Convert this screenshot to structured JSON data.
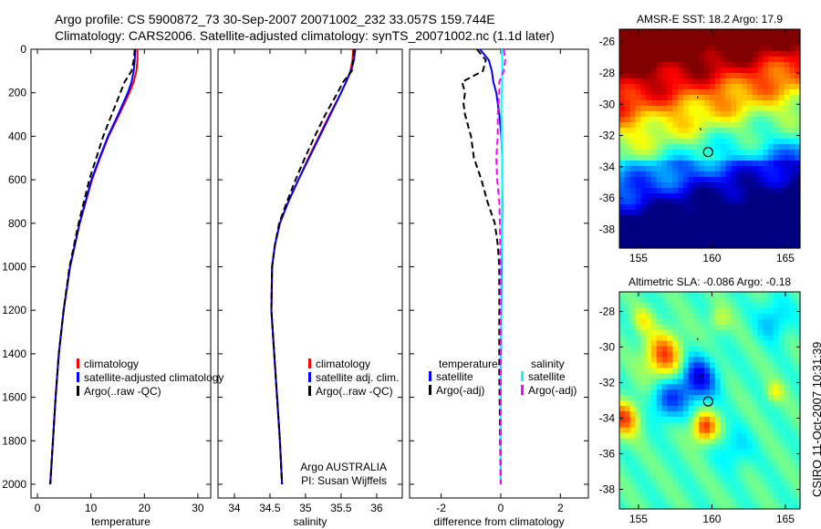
{
  "header": {
    "line1": "Argo profile: CS 5900872_73 30-Sep-2007 20071002_232 33.057S 159.744E",
    "line2": "Climatology: CARS2006. Satellite-adjusted climatology: synTS_20071002.nc (1.1d later)"
  },
  "side_label": "CSIRO 11-Oct-2007 10:31:39",
  "chart_data": [
    {
      "type": "line",
      "xlabel": "temperature",
      "ylabel": "",
      "xlim": [
        -1.2,
        32.4
      ],
      "ylim": [
        2063,
        0
      ],
      "xticks": [
        0,
        10,
        20,
        30
      ],
      "yticks": [
        0,
        200,
        400,
        600,
        800,
        1000,
        1200,
        1400,
        1600,
        1800,
        2000
      ],
      "legend": [
        "climatology",
        "satellite-adjusted climatology",
        "Argo(..raw -QC)"
      ],
      "legend_placement": "bottom-right",
      "depth": [
        0,
        50,
        100,
        150,
        200,
        300,
        400,
        500,
        600,
        800,
        1000,
        1200,
        1400,
        1600,
        1800,
        2000
      ],
      "series": [
        {
          "name": "climatology",
          "color": "#ff0000",
          "dash": false,
          "values": [
            18.7,
            18.7,
            18.5,
            18.0,
            17.2,
            15.3,
            13.3,
            11.7,
            10.2,
            7.9,
            6.1,
            4.9,
            4.0,
            3.4,
            2.9,
            2.4
          ]
        },
        {
          "name": "satellite-adjusted climatology",
          "color": "#0000ff",
          "dash": false,
          "values": [
            18.3,
            18.2,
            18.0,
            17.6,
            16.9,
            15.1,
            13.2,
            11.6,
            10.1,
            7.9,
            6.1,
            4.9,
            4.0,
            3.4,
            2.9,
            2.4
          ]
        },
        {
          "name": "Argo(..raw -QC)",
          "color": "#000000",
          "dash": true,
          "values": [
            18.2,
            18.0,
            17.6,
            16.3,
            15.5,
            13.9,
            12.3,
            11.0,
            9.7,
            7.7,
            6.0,
            4.9,
            4.0,
            3.4,
            2.9,
            2.4
          ]
        }
      ]
    },
    {
      "type": "line",
      "xlabel": "salinity",
      "xlim": [
        33.77,
        36.36
      ],
      "ylim": [
        2063,
        0
      ],
      "xticks": [
        34,
        34.5,
        35,
        35.5,
        36
      ],
      "yticks": [],
      "legend": [
        "climatology",
        "satellite adj. clim.",
        "Argo(..raw -QC)"
      ],
      "legend_placement": "bottom-right",
      "annotation": [
        "Argo AUSTRALIA",
        "PI: Susan Wijffels"
      ],
      "depth": [
        0,
        50,
        100,
        150,
        200,
        300,
        400,
        500,
        600,
        700,
        800,
        900,
        1000,
        1200,
        1400,
        1600,
        1800,
        2000
      ],
      "series": [
        {
          "name": "climatology",
          "color": "#ff0000",
          "dash": false,
          "values": [
            35.67,
            35.66,
            35.63,
            35.57,
            35.5,
            35.34,
            35.19,
            35.04,
            34.9,
            34.76,
            34.64,
            34.57,
            34.53,
            34.52,
            34.56,
            34.6,
            34.64,
            34.67
          ]
        },
        {
          "name": "satellite adj. clim.",
          "color": "#0000ff",
          "dash": false,
          "values": [
            35.7,
            35.68,
            35.64,
            35.57,
            35.5,
            35.35,
            35.2,
            35.05,
            34.9,
            34.76,
            34.64,
            34.57,
            34.53,
            34.52,
            34.56,
            34.6,
            34.64,
            34.67
          ]
        },
        {
          "name": "Argo(..raw -QC)",
          "color": "#000000",
          "dash": true,
          "values": [
            35.68,
            35.67,
            35.65,
            35.53,
            35.45,
            35.28,
            35.13,
            34.99,
            34.86,
            34.74,
            34.63,
            34.57,
            34.53,
            34.52,
            34.56,
            34.6,
            34.64,
            34.67
          ]
        }
      ]
    },
    {
      "type": "line",
      "xlabel": "difference from climatology",
      "xlim": [
        -3.06,
        2.94
      ],
      "ylim": [
        2063,
        0
      ],
      "xticks": [
        -2,
        0,
        2
      ],
      "yticks": [],
      "legend_titles": [
        "temperature",
        "salinity"
      ],
      "legend": [
        "satellite",
        "Argo(-adj)",
        "satellite",
        "Argo(-adj)"
      ],
      "legend_placement": "bottom",
      "depth": [
        0,
        50,
        100,
        150,
        200,
        250,
        300,
        400,
        500,
        600,
        700,
        800,
        900,
        1000,
        1200,
        1500,
        2000
      ],
      "series": [
        {
          "name": "temperature satellite",
          "color": "#0000ff",
          "dash": false,
          "values": [
            -0.7,
            -0.4,
            -0.3,
            -0.25,
            -0.15,
            -0.1,
            -0.05,
            0.02,
            0.05,
            0.05,
            0.05,
            0.04,
            0.03,
            0.03,
            0.02,
            0.0,
            0.0
          ]
        },
        {
          "name": "temperature Argo(-adj)",
          "color": "#000000",
          "dash": true,
          "values": [
            -0.8,
            -0.5,
            -0.6,
            -1.3,
            -1.2,
            -1.25,
            -1.2,
            -1.0,
            -0.9,
            -0.65,
            -0.45,
            -0.2,
            -0.1,
            -0.05,
            -0.05,
            -0.05,
            0.0
          ]
        },
        {
          "name": "salinity satellite",
          "color": "#00ffff",
          "dash": false,
          "values": [
            0.03,
            0.05,
            0.05,
            0.04,
            0.03,
            0.02,
            0.02,
            0.03,
            0.05,
            0.05,
            0.04,
            0.03,
            0.03,
            0.02,
            0.02,
            0.0,
            0.0
          ]
        },
        {
          "name": "salinity Argo(-adj)",
          "color": "#ff00ff",
          "dash": true,
          "values": [
            0.1,
            0.15,
            0.1,
            -0.05,
            -0.05,
            -0.08,
            -0.1,
            -0.1,
            -0.15,
            -0.12,
            -0.05,
            -0.03,
            -0.02,
            0.0,
            0.0,
            0.0,
            0.0
          ]
        }
      ]
    },
    {
      "type": "heatmap",
      "title": "AMSR-E SST: 18.2 Argo: 17.9",
      "xlim": [
        153.7,
        166
      ],
      "ylim": [
        -25.2,
        -39.2
      ],
      "xticks": [
        155,
        160,
        165
      ],
      "yticks": [
        -26,
        -28,
        -30,
        -32,
        -34,
        -36,
        -38
      ],
      "marker": [
        159.744,
        -33.057
      ]
    },
    {
      "type": "heatmap",
      "title": "Altimetric SLA: -0.086 Argo: -0.18",
      "xlim": [
        153.7,
        166
      ],
      "ylim": [
        -26.9,
        -39.1
      ],
      "xticks": [
        155,
        160,
        165
      ],
      "yticks": [
        -28,
        -30,
        -32,
        -34,
        -36,
        -38
      ],
      "marker": [
        159.744,
        -33.057
      ]
    }
  ]
}
